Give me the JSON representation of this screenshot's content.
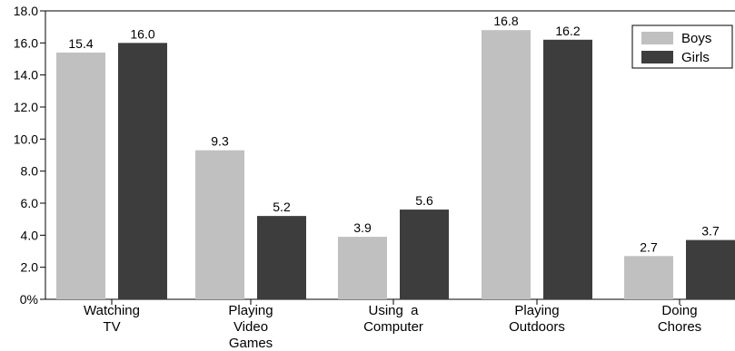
{
  "chart_data": {
    "type": "bar",
    "categories": [
      [
        "Watching",
        "TV"
      ],
      [
        "Playing",
        "Video",
        "Games"
      ],
      [
        "Using  a",
        "Computer"
      ],
      [
        "Playing",
        "Outdoors"
      ],
      [
        "Doing",
        "Chores"
      ]
    ],
    "series": [
      {
        "name": "Boys",
        "color": "#c0c0c0",
        "values": [
          15.4,
          9.3,
          3.9,
          16.8,
          2.7
        ],
        "labels": [
          "15.4",
          "9.3",
          "3.9",
          "16.8",
          "2.7"
        ]
      },
      {
        "name": "Girls",
        "color": "#3d3d3d",
        "values": [
          16.0,
          5.2,
          5.6,
          16.2,
          3.7
        ],
        "labels": [
          "16.0",
          "5.2",
          "5.6",
          "16.2",
          "3.7"
        ]
      }
    ],
    "y_ticks": [
      "0%",
      "2.0",
      "4.0",
      "6.0",
      "8.0",
      "10.0",
      "12.0",
      "14.0",
      "16.0",
      "18.0"
    ],
    "ylim": [
      0,
      18
    ],
    "grid": false,
    "legend_position": "top-right",
    "title": "",
    "xlabel": "",
    "ylabel": ""
  }
}
